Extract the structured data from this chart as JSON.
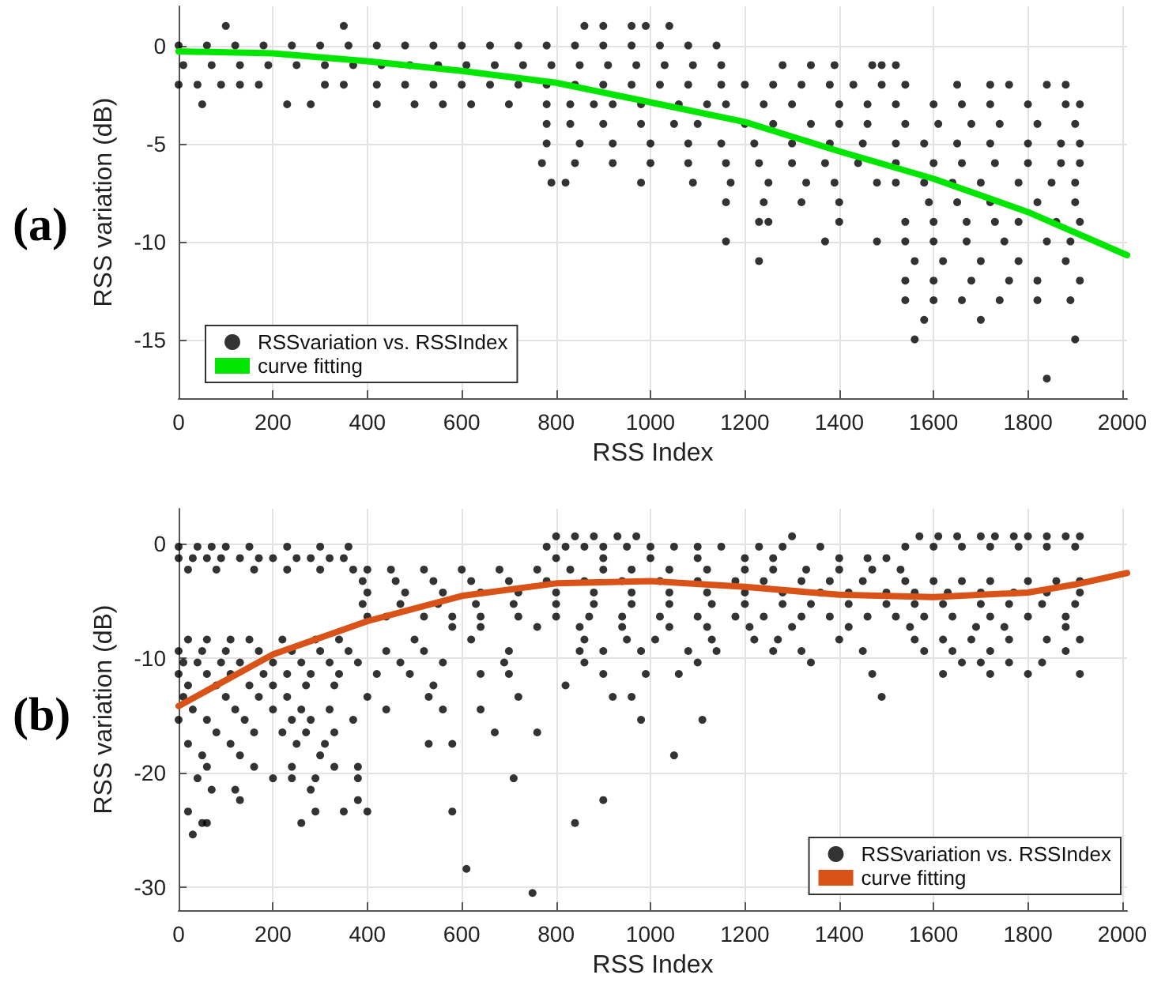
{
  "chart_data": [
    {
      "type": "scatter",
      "xlabel": "RSS Index",
      "ylabel": "RSS variation (dB)",
      "annotations": [
        "(a)"
      ],
      "xlim": [
        0,
        2010
      ],
      "xticks": [
        0,
        200,
        400,
        600,
        800,
        1000,
        1200,
        1400,
        1600,
        1800,
        2000
      ],
      "ylim": [
        -18,
        2
      ],
      "yticks": [
        -15,
        -10,
        -5,
        0
      ],
      "grid": true,
      "legend": "bottom left",
      "series": [
        {
          "name": "RSSvariation vs. RSSIndex",
          "type": "scatter",
          "marker": "circle",
          "color": "#000000",
          "x": [
            0,
            60,
            120,
            180,
            240,
            300,
            360,
            420,
            480,
            540,
            600,
            660,
            720,
            780,
            840,
            900,
            960,
            1020,
            1080,
            1140,
            10,
            70,
            130,
            190,
            250,
            310,
            370,
            430,
            490,
            550,
            610,
            670,
            730,
            790,
            850,
            910,
            970,
            1030,
            1090,
            1150,
            1280,
            1340,
            1390,
            1470,
            1490,
            1520,
            0,
            40,
            90,
            130,
            170,
            310,
            350,
            420,
            480,
            540,
            600,
            660,
            720,
            780,
            840,
            900,
            960,
            1020,
            1080,
            1150,
            1200,
            1260,
            1320,
            1380,
            1430,
            1490,
            1540,
            1650,
            1720,
            1760,
            1840,
            1880,
            100,
            350,
            860,
            900,
            960,
            990,
            1040,
            50,
            230,
            280,
            420,
            500,
            560,
            620,
            700,
            780,
            830,
            880,
            920,
            980,
            1060,
            1120,
            1160,
            1240,
            1300,
            1400,
            1460,
            1520,
            1600,
            1660,
            1720,
            1800,
            1880,
            1910,
            780,
            830,
            900,
            980,
            1050,
            1100,
            1200,
            1260,
            1340,
            1400,
            1460,
            1540,
            1610,
            1680,
            1740,
            1820,
            1900,
            780,
            850,
            920,
            1000,
            1080,
            1150,
            1220,
            1300,
            1380,
            1450,
            1520,
            1580,
            1650,
            1720,
            1800,
            1870,
            1910,
            770,
            840,
            920,
            1000,
            1080,
            1160,
            1230,
            1300,
            1370,
            1440,
            1520,
            1600,
            1660,
            1730,
            1800,
            1870,
            1910,
            790,
            820,
            980,
            1090,
            1170,
            1250,
            1330,
            1390,
            1480,
            1520,
            1580,
            1640,
            1700,
            1780,
            1850,
            1900,
            1160,
            1240,
            1320,
            1400,
            1590,
            1650,
            1720,
            1820,
            1900,
            1230,
            1250,
            1400,
            1540,
            1600,
            1670,
            1730,
            1780,
            1860,
            1910,
            1160,
            1370,
            1480,
            1540,
            1600,
            1670,
            1750,
            1840,
            1890,
            1230,
            1560,
            1620,
            1700,
            1780,
            1880,
            1540,
            1600,
            1680,
            1760,
            1820,
            1910,
            1540,
            1600,
            1660,
            1740,
            1820,
            1890,
            1580,
            1700,
            1560,
            1900,
            1840
          ],
          "values": [
            0,
            0,
            0,
            0,
            0,
            0,
            0,
            0,
            0,
            0,
            0,
            0,
            0,
            0,
            0,
            0,
            0,
            0,
            0,
            0,
            -1,
            -1,
            -1,
            -1,
            -1,
            -1,
            -1,
            -1,
            -1,
            -1,
            -1,
            -1,
            -1,
            -1,
            -1,
            -1,
            -1,
            -1,
            -1,
            -1,
            -1,
            -1,
            -1,
            -1,
            -1,
            -1,
            -2,
            -2,
            -2,
            -2,
            -2,
            -2,
            -2,
            -2,
            -2,
            -2,
            -2,
            -2,
            -2,
            -2,
            -2,
            -2,
            -2,
            -2,
            -2,
            -2,
            -2,
            -2,
            -2,
            -2,
            -2,
            -2,
            -2,
            -2,
            -2,
            -2,
            -2,
            -2,
            1,
            1,
            1,
            1,
            1,
            1,
            1,
            -3,
            -3,
            -3,
            -3,
            -3,
            -3,
            -3,
            -3,
            -3,
            -3,
            -3,
            -3,
            -3,
            -3,
            -3,
            -3,
            -3,
            -3,
            -3,
            -3,
            -3,
            -3,
            -3,
            -3,
            -3,
            -3,
            -3,
            -4,
            -4,
            -4,
            -4,
            -4,
            -4,
            -4,
            -4,
            -4,
            -4,
            -4,
            -4,
            -4,
            -4,
            -4,
            -4,
            -4,
            -5,
            -5,
            -5,
            -5,
            -5,
            -5,
            -5,
            -5,
            -5,
            -5,
            -5,
            -5,
            -5,
            -5,
            -5,
            -5,
            -5,
            -6,
            -6,
            -6,
            -6,
            -6,
            -6,
            -6,
            -6,
            -6,
            -6,
            -6,
            -6,
            -6,
            -6,
            -6,
            -6,
            -6,
            -7,
            -7,
            -7,
            -7,
            -7,
            -7,
            -7,
            -7,
            -7,
            -7,
            -7,
            -7,
            -7,
            -7,
            -7,
            -7,
            -8,
            -8,
            -8,
            -8,
            -8,
            -8,
            -8,
            -8,
            -8,
            -9,
            -9,
            -9,
            -9,
            -9,
            -9,
            -9,
            -9,
            -9,
            -9,
            -10,
            -10,
            -10,
            -10,
            -10,
            -10,
            -10,
            -10,
            -10,
            -11,
            -11,
            -11,
            -11,
            -11,
            -11,
            -12,
            -12,
            -12,
            -12,
            -12,
            -12,
            -13,
            -13,
            -13,
            -13,
            -13,
            -13,
            -14,
            -14,
            -15,
            -15,
            -17
          ]
        },
        {
          "name": "curve fitting",
          "type": "line",
          "marker": "none",
          "line_style": "solid",
          "color": "#00e600",
          "x": [
            0,
            200,
            400,
            600,
            800,
            1000,
            1200,
            1400,
            1600,
            1800,
            2010
          ],
          "values": [
            -0.3,
            -0.4,
            -0.8,
            -1.3,
            -1.9,
            -2.9,
            -3.9,
            -5.4,
            -6.8,
            -8.5,
            -10.7
          ]
        }
      ]
    },
    {
      "type": "scatter",
      "xlabel": "RSS Index",
      "ylabel": "RSS variation (dB)",
      "annotations": [
        "(b)"
      ],
      "xlim": [
        0,
        2010
      ],
      "xticks": [
        0,
        200,
        400,
        600,
        800,
        1000,
        1200,
        1400,
        1600,
        1800,
        2000
      ],
      "ylim": [
        -32,
        3
      ],
      "yticks": [
        -30,
        -20,
        -10,
        0
      ],
      "grid": true,
      "legend": "bottom right",
      "series": [
        {
          "name": "RSSvariation vs. RSSIndex",
          "type": "scatter",
          "marker": "circle",
          "color": "#000000",
          "x": [
            800,
            840,
            880,
            930,
            970,
            1300,
            1570,
            1610,
            1650,
            1700,
            1730,
            1770,
            1800,
            1840,
            1880,
            1910,
            0,
            40,
            70,
            100,
            150,
            230,
            300,
            360,
            780,
            820,
            860,
            900,
            950,
            1000,
            1050,
            1100,
            1150,
            1230,
            1280,
            1360,
            1540,
            1600,
            1660,
            1720,
            1780,
            1840,
            1900,
            0,
            30,
            60,
            90,
            130,
            170,
            200,
            250,
            280,
            320,
            350,
            800,
            900,
            1000,
            1100,
            1200,
            1260,
            1400,
            1460,
            1500,
            20,
            80,
            160,
            230,
            300,
            370,
            400,
            450,
            520,
            600,
            680,
            760,
            830,
            900,
            960,
            1040,
            1120,
            1200,
            1260,
            1330,
            1400,
            1470,
            1530,
            390,
            460,
            540,
            620,
            700,
            780,
            860,
            940,
            1020,
            1100,
            1180,
            1240,
            1320,
            1380,
            1450,
            1540,
            1600,
            1660,
            1720,
            1800,
            1860,
            1910,
            400,
            480,
            560,
            640,
            720,
            800,
            880,
            960,
            1040,
            1120,
            1200,
            1280,
            1360,
            1420,
            1500,
            1560,
            1630,
            1700,
            1770,
            1840,
            1910,
            390,
            470,
            550,
            630,
            710,
            800,
            880,
            960,
            1040,
            1130,
            1200,
            1280,
            1340,
            1420,
            1500,
            1560,
            1620,
            1700,
            1760,
            1830,
            1900,
            400,
            440,
            520,
            580,
            640,
            720,
            800,
            870,
            940,
            1020,
            1100,
            1180,
            1240,
            1320,
            1380,
            1460,
            1520,
            1580,
            1640,
            1720,
            1800,
            1880,
            580,
            640,
            760,
            850,
            940,
            1040,
            1120,
            1210,
            1300,
            1420,
            1550,
            1690,
            1750,
            1880,
            20,
            60,
            110,
            150,
            220,
            290,
            340,
            500,
            620,
            860,
            950,
            1010,
            1130,
            1220,
            1270,
            1400,
            1560,
            1620,
            1680,
            1760,
            1840,
            1910,
            0,
            50,
            100,
            170,
            240,
            300,
            360,
            440,
            520,
            700,
            850,
            900,
            980,
            1080,
            1140,
            1260,
            1320,
            1450,
            1580,
            1640,
            1720,
            1880,
            10,
            40,
            90,
            130,
            200,
            260,
            320,
            380,
            470,
            560,
            690,
            860,
            1100,
            1340,
            1660,
            1700,
            1760,
            1830,
            0,
            60,
            110,
            180,
            230,
            280,
            340,
            420,
            490,
            640,
            700,
            900,
            990,
            1060,
            1470,
            1620,
            1720,
            1800,
            1910,
            20,
            80,
            150,
            200,
            270,
            330,
            540,
            820,
            10,
            100,
            170,
            230,
            400,
            530,
            720,
            920,
            960,
            1490,
            30,
            120,
            200,
            260,
            320,
            440,
            560,
            640,
            0,
            60,
            140,
            240,
            280,
            370,
            980,
            1110,
            80,
            160,
            220,
            270,
            330,
            670,
            760,
            20,
            110,
            250,
            310,
            530,
            580,
            50,
            130,
            300,
            1050,
            60,
            160,
            240,
            330,
            380,
            40,
            200,
            240,
            290,
            380,
            710,
            70,
            120,
            280,
            130,
            380,
            900,
            20,
            290,
            350,
            400,
            580,
            50,
            60,
            260,
            840,
            30,
            610,
            750
          ],
          "values": [
            0.6,
            0.6,
            0.6,
            0.6,
            0.6,
            0.6,
            0.6,
            0.6,
            0.6,
            0.6,
            0.6,
            0.6,
            0.6,
            0.6,
            0.6,
            0.6,
            -0.3,
            -0.3,
            -0.3,
            -0.3,
            -0.3,
            -0.3,
            -0.3,
            -0.3,
            -0.3,
            -0.3,
            -0.3,
            -0.3,
            -0.3,
            -0.3,
            -0.3,
            -0.3,
            -0.3,
            -0.3,
            -0.3,
            -0.3,
            -0.3,
            -0.3,
            -0.3,
            -0.3,
            -0.3,
            -0.3,
            -0.3,
            -1.3,
            -1.3,
            -1.3,
            -1.3,
            -1.3,
            -1.3,
            -1.3,
            -1.3,
            -1.3,
            -1.3,
            -1.3,
            -1.3,
            -1.3,
            -1.3,
            -1.3,
            -1.3,
            -1.3,
            -1.3,
            -1.3,
            -1.3,
            -2.3,
            -2.3,
            -2.3,
            -2.3,
            -2.3,
            -2.3,
            -2.3,
            -2.3,
            -2.3,
            -2.3,
            -2.3,
            -2.3,
            -2.3,
            -2.3,
            -2.3,
            -2.3,
            -2.3,
            -2.3,
            -2.3,
            -2.3,
            -2.3,
            -2.3,
            -2.3,
            -3.3,
            -3.3,
            -3.3,
            -3.3,
            -3.3,
            -3.3,
            -3.3,
            -3.3,
            -3.3,
            -3.3,
            -3.3,
            -3.3,
            -3.3,
            -3.3,
            -3.3,
            -3.3,
            -3.3,
            -3.3,
            -3.3,
            -3.3,
            -3.3,
            -3.3,
            -4.3,
            -4.3,
            -4.3,
            -4.3,
            -4.3,
            -4.3,
            -4.3,
            -4.3,
            -4.3,
            -4.3,
            -4.3,
            -4.3,
            -4.3,
            -4.3,
            -4.3,
            -4.3,
            -4.3,
            -4.3,
            -4.3,
            -4.3,
            -4.3,
            -5.3,
            -5.3,
            -5.3,
            -5.3,
            -5.3,
            -5.3,
            -5.3,
            -5.3,
            -5.3,
            -5.3,
            -5.3,
            -5.3,
            -5.3,
            -5.3,
            -5.3,
            -5.3,
            -5.3,
            -5.3,
            -5.3,
            -5.3,
            -5.3,
            -6.4,
            -6.4,
            -6.4,
            -6.4,
            -6.4,
            -6.4,
            -6.4,
            -6.4,
            -6.4,
            -6.4,
            -6.4,
            -6.4,
            -6.4,
            -6.4,
            -6.4,
            -6.4,
            -6.4,
            -6.4,
            -6.4,
            -6.4,
            -6.4,
            -6.4,
            -7.3,
            -7.3,
            -7.3,
            -7.3,
            -7.3,
            -7.3,
            -7.3,
            -7.3,
            -7.3,
            -7.3,
            -7.3,
            -7.3,
            -7.3,
            -7.3,
            -8.4,
            -8.4,
            -8.4,
            -8.4,
            -8.4,
            -8.4,
            -8.4,
            -8.4,
            -8.4,
            -8.4,
            -8.4,
            -8.4,
            -8.4,
            -8.4,
            -8.4,
            -8.4,
            -8.4,
            -8.4,
            -8.4,
            -8.4,
            -8.4,
            -8.4,
            -9.4,
            -9.4,
            -9.4,
            -9.4,
            -9.4,
            -9.4,
            -9.4,
            -9.4,
            -9.4,
            -9.4,
            -9.4,
            -9.4,
            -9.4,
            -9.4,
            -9.4,
            -9.4,
            -9.4,
            -9.4,
            -9.4,
            -9.4,
            -9.4,
            -9.4,
            -10.4,
            -10.4,
            -10.4,
            -10.4,
            -10.4,
            -10.4,
            -10.4,
            -10.4,
            -10.4,
            -10.4,
            -10.4,
            -10.4,
            -10.4,
            -10.4,
            -10.4,
            -10.4,
            -10.4,
            -10.4,
            -11.4,
            -11.4,
            -11.4,
            -11.4,
            -11.4,
            -11.4,
            -11.4,
            -11.4,
            -11.4,
            -11.4,
            -11.4,
            -11.4,
            -11.4,
            -11.4,
            -11.4,
            -11.4,
            -11.4,
            -11.4,
            -11.4,
            -12.4,
            -12.4,
            -12.4,
            -12.4,
            -12.4,
            -12.4,
            -12.4,
            -12.4,
            -13.4,
            -13.4,
            -13.4,
            -13.4,
            -13.4,
            -13.4,
            -13.4,
            -13.4,
            -13.4,
            -13.4,
            -14.5,
            -14.5,
            -14.5,
            -14.5,
            -14.5,
            -14.5,
            -14.5,
            -14.5,
            -15.4,
            -15.4,
            -15.4,
            -15.4,
            -15.4,
            -15.4,
            -15.4,
            -15.4,
            -16.5,
            -16.5,
            -16.5,
            -16.5,
            -16.5,
            -16.5,
            -16.5,
            -17.5,
            -17.5,
            -17.5,
            -17.5,
            -17.5,
            -17.5,
            -18.5,
            -18.5,
            -18.5,
            -18.5,
            -19.5,
            -19.5,
            -19.5,
            -19.5,
            -19.5,
            -20.5,
            -20.5,
            -20.5,
            -20.5,
            -20.5,
            -20.5,
            -21.5,
            -21.5,
            -21.5,
            -22.4,
            -22.4,
            -22.4,
            -23.4,
            -23.4,
            -23.4,
            -23.4,
            -23.4,
            -24.4,
            -24.4,
            -24.4,
            -24.4,
            -25.4,
            -28.4,
            -30.5
          ]
        },
        {
          "name": "curve fitting",
          "type": "line",
          "marker": "none",
          "line_style": "solid",
          "color": "#d95319",
          "x": [
            0,
            200,
            400,
            600,
            800,
            1000,
            1200,
            1400,
            1600,
            1800,
            1900,
            2010
          ],
          "values": [
            -14.2,
            -9.7,
            -6.8,
            -4.6,
            -3.5,
            -3.3,
            -3.8,
            -4.5,
            -4.7,
            -4.3,
            -3.6,
            -2.6
          ]
        }
      ]
    }
  ]
}
